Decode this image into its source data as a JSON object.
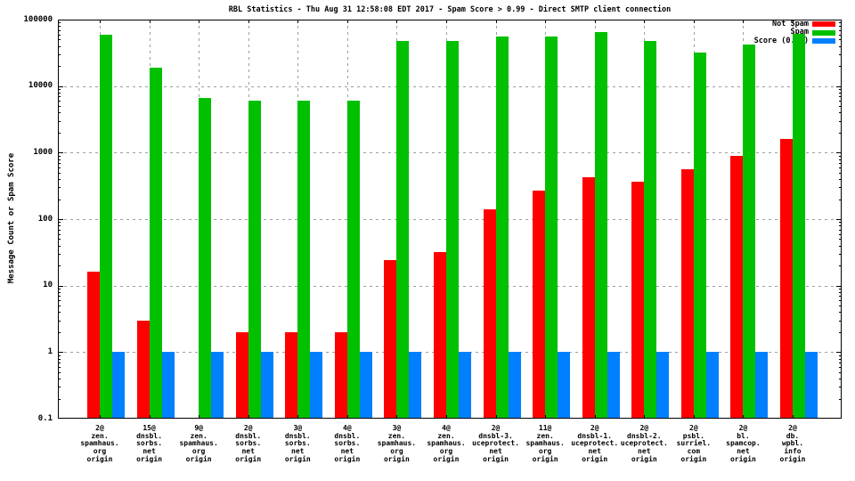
{
  "title": "RBL Statistics - Thu Aug 31 12:58:08 EDT 2017 - Spam Score > 0.99 - Direct SMTP client connection",
  "chart_data": {
    "type": "bar",
    "title": "RBL Statistics - Thu Aug 31 12:58:08 EDT 2017 - Spam Score > 0.99 - Direct SMTP client connection",
    "ylabel": "Message Count or Spam Score",
    "xlabel": "",
    "y_scale": "log10",
    "ylim": [
      0.1,
      100000
    ],
    "grid": true,
    "legend_position": "top-right-inside",
    "y_tick_labels": [
      "100000",
      "10000",
      "1000",
      "100",
      "10",
      "1",
      "0.1"
    ],
    "y_tick_values": [
      100000,
      10000,
      1000,
      100,
      10,
      1,
      0.1
    ],
    "categories": [
      [
        "2@",
        "zen.",
        "spamhaus.",
        "org",
        "origin"
      ],
      [
        "15@",
        "dnsbl.",
        "sorbs.",
        "net",
        "origin"
      ],
      [
        "9@",
        "zen.",
        "spamhaus.",
        "org",
        "origin"
      ],
      [
        "2@",
        "dnsbl.",
        "sorbs.",
        "net",
        "origin"
      ],
      [
        "3@",
        "dnsbl.",
        "sorbs.",
        "net",
        "origin"
      ],
      [
        "4@",
        "dnsbl.",
        "sorbs.",
        "net",
        "origin"
      ],
      [
        "3@",
        "zen.",
        "spamhaus.",
        "org",
        "origin"
      ],
      [
        "4@",
        "zen.",
        "spamhaus.",
        "org",
        "origin"
      ],
      [
        "2@",
        "dnsbl-3.",
        "uceprotect.",
        "net",
        "origin"
      ],
      [
        "11@",
        "zen.",
        "spamhaus.",
        "org",
        "origin"
      ],
      [
        "2@",
        "dnsbl-1.",
        "uceprotect.",
        "net",
        "origin"
      ],
      [
        "2@",
        "dnsbl-2.",
        "uceprotect.",
        "net",
        "origin"
      ],
      [
        "2@",
        "psbl.",
        "surriel.",
        "com",
        "origin"
      ],
      [
        "2@",
        "bl.",
        "spamcop.",
        "net",
        "origin"
      ],
      [
        "2@",
        "db.",
        "wpbl.",
        "info",
        "origin"
      ]
    ],
    "series": [
      {
        "name": "Not Spam",
        "color": "#ff0000",
        "values": [
          16,
          3,
          0,
          2,
          2,
          2,
          24,
          32,
          140,
          270,
          420,
          370,
          570,
          900,
          1600
        ]
      },
      {
        "name": "Spam",
        "color": "#00c000",
        "values": [
          60000,
          19000,
          6700,
          6000,
          6100,
          6100,
          47000,
          47000,
          55000,
          56000,
          65000,
          48000,
          32000,
          42000,
          62000
        ]
      },
      {
        "name": "Score (0..1)",
        "color": "#0080ff",
        "values": [
          1,
          1,
          1,
          1,
          1,
          1,
          1,
          1,
          1,
          1,
          1,
          1,
          1,
          1,
          1
        ]
      }
    ],
    "colors": {
      "not_spam": "#ff0000",
      "spam": "#00c000",
      "score": "#0080ff",
      "grid": "#9e9e9e",
      "axis": "#000000",
      "background": "#ffffff"
    }
  }
}
